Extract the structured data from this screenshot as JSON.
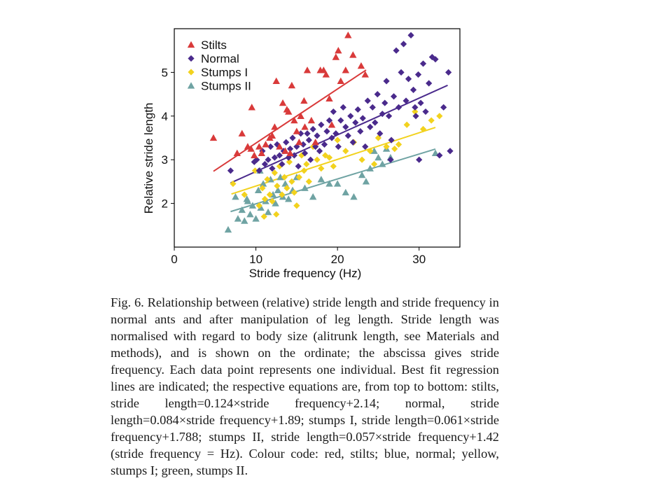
{
  "caption": "Fig. 6. Relationship between (relative) stride length and stride frequency in normal ants and after manipulation of leg length. Stride length was normalised with regard to body size (alitrunk length, see Materials and methods), and is shown on the ordinate; the abscissa gives stride frequency. Each data point represents one individual. Best fit regression lines are indicated; the respective equations are, from top to bottom: stilts, stride length=0.124×stride frequency+2.14; normal, stride length=0.084×stride frequency+1.89; stumps I, stride length=0.061×stride frequency+1.788; stumps II, stride length=0.057×stride frequency+1.42 (stride frequency = Hz). Colour code: red, stilts; blue, normal; yellow, stumps I; green, stumps II.",
  "chart_data": {
    "type": "scatter",
    "xlabel": "Stride frequency (Hz)",
    "ylabel": "Relative stride length",
    "xlim": [
      0,
      35
    ],
    "ylim": [
      1,
      6
    ],
    "xticks": [
      0,
      10,
      20,
      30
    ],
    "yticks": [
      2,
      3,
      4,
      5
    ],
    "legend_position": "top-left",
    "series": [
      {
        "name": "Stilts",
        "marker": "triangle",
        "color": "#d93a3a",
        "regression": {
          "slope": 0.124,
          "intercept": 2.14,
          "x_range": [
            4.8,
            23.5
          ]
        },
        "points": [
          [
            4.8,
            3.5
          ],
          [
            7.7,
            3.15
          ],
          [
            8.3,
            3.6
          ],
          [
            9,
            3.3
          ],
          [
            9.4,
            3.25
          ],
          [
            9.5,
            4.2
          ],
          [
            9.8,
            3.1
          ],
          [
            10.4,
            3.3
          ],
          [
            10.7,
            3.15
          ],
          [
            11.2,
            3.35
          ],
          [
            11.7,
            3.5
          ],
          [
            12.3,
            3.75
          ],
          [
            12.5,
            4.8
          ],
          [
            12.9,
            3.3
          ],
          [
            13.3,
            4.3
          ],
          [
            13.6,
            3.2
          ],
          [
            13.8,
            4.15
          ],
          [
            14.0,
            4.1
          ],
          [
            14.4,
            4.7
          ],
          [
            14.7,
            3.9
          ],
          [
            15.0,
            3.65
          ],
          [
            15.3,
            3.4
          ],
          [
            15.5,
            4.0
          ],
          [
            15.9,
            4.35
          ],
          [
            16.0,
            3.75
          ],
          [
            16.3,
            5.05
          ],
          [
            16.8,
            3.9
          ],
          [
            17.3,
            3.4
          ],
          [
            17.9,
            5.05
          ],
          [
            18.3,
            5.05
          ],
          [
            18.6,
            4.95
          ],
          [
            19.0,
            4.4
          ],
          [
            19.3,
            3.8
          ],
          [
            19.8,
            5.35
          ],
          [
            20.1,
            5.5
          ],
          [
            20.4,
            4.8
          ],
          [
            21.0,
            5.05
          ],
          [
            21.3,
            5.85
          ],
          [
            21.9,
            5.4
          ],
          [
            22.9,
            5.15
          ],
          [
            23.4,
            4.95
          ],
          [
            14.2,
            3.15
          ],
          [
            12.0,
            3.55
          ]
        ]
      },
      {
        "name": "Normal",
        "marker": "diamond",
        "color": "#4a2a8c",
        "regression": {
          "slope": 0.084,
          "intercept": 1.89,
          "x_range": [
            6.9,
            33.5
          ]
        },
        "points": [
          [
            6.9,
            2.75
          ],
          [
            9.8,
            2.95
          ],
          [
            10.1,
            3.0
          ],
          [
            10.4,
            2.75
          ],
          [
            10.8,
            3.2
          ],
          [
            11.1,
            2.9
          ],
          [
            11.5,
            3.0
          ],
          [
            11.8,
            3.3
          ],
          [
            12.0,
            2.8
          ],
          [
            12.3,
            3.05
          ],
          [
            12.6,
            3.35
          ],
          [
            12.9,
            3.1
          ],
          [
            13.2,
            2.9
          ],
          [
            13.4,
            3.2
          ],
          [
            13.7,
            3.4
          ],
          [
            14.0,
            3.05
          ],
          [
            14.2,
            3.25
          ],
          [
            14.5,
            3.5
          ],
          [
            14.7,
            3.1
          ],
          [
            15.0,
            3.3
          ],
          [
            15.2,
            2.85
          ],
          [
            15.5,
            3.6
          ],
          [
            15.8,
            3.35
          ],
          [
            16.0,
            3.15
          ],
          [
            16.3,
            3.6
          ],
          [
            16.5,
            3.45
          ],
          [
            16.7,
            3.0
          ],
          [
            17.0,
            3.7
          ],
          [
            17.3,
            3.3
          ],
          [
            17.5,
            3.55
          ],
          [
            17.8,
            3.2
          ],
          [
            18.0,
            3.8
          ],
          [
            18.4,
            3.35
          ],
          [
            18.7,
            3.65
          ],
          [
            19.0,
            3.9
          ],
          [
            19.3,
            3.5
          ],
          [
            19.5,
            4.1
          ],
          [
            19.8,
            3.6
          ],
          [
            20.1,
            3.3
          ],
          [
            20.4,
            3.9
          ],
          [
            20.7,
            4.2
          ],
          [
            21.0,
            3.75
          ],
          [
            21.3,
            3.55
          ],
          [
            21.6,
            4.0
          ],
          [
            21.9,
            3.4
          ],
          [
            22.2,
            3.85
          ],
          [
            22.5,
            4.15
          ],
          [
            22.8,
            3.65
          ],
          [
            23.1,
            3.95
          ],
          [
            23.4,
            3.3
          ],
          [
            23.7,
            4.35
          ],
          [
            24.0,
            3.75
          ],
          [
            24.3,
            4.2
          ],
          [
            24.6,
            3.85
          ],
          [
            24.9,
            4.5
          ],
          [
            25.2,
            3.6
          ],
          [
            25.5,
            4.05
          ],
          [
            25.8,
            4.3
          ],
          [
            26.0,
            4.8
          ],
          [
            26.3,
            4.0
          ],
          [
            26.6,
            3.45
          ],
          [
            26.9,
            4.45
          ],
          [
            27.2,
            5.5
          ],
          [
            27.5,
            4.2
          ],
          [
            27.8,
            5.0
          ],
          [
            28.1,
            5.65
          ],
          [
            28.4,
            4.35
          ],
          [
            28.7,
            4.85
          ],
          [
            29.0,
            5.85
          ],
          [
            29.3,
            4.6
          ],
          [
            29.6,
            4.0
          ],
          [
            29.9,
            4.95
          ],
          [
            30.2,
            4.3
          ],
          [
            30.5,
            5.2
          ],
          [
            30.8,
            4.1
          ],
          [
            31.2,
            4.75
          ],
          [
            31.6,
            5.35
          ],
          [
            32.0,
            5.3
          ],
          [
            32.5,
            3.1
          ],
          [
            33.0,
            4.2
          ],
          [
            33.6,
            5.0
          ],
          [
            33.8,
            3.2
          ],
          [
            26.5,
            3.0
          ],
          [
            30.0,
            3.0
          ],
          [
            29.5,
            4.2
          ]
        ]
      },
      {
        "name": "Stumps I",
        "marker": "diamond",
        "color": "#f2d21e",
        "regression": {
          "slope": 0.061,
          "intercept": 1.788,
          "x_range": [
            7.0,
            32.0
          ]
        },
        "points": [
          [
            7.2,
            2.45
          ],
          [
            8.6,
            2.2
          ],
          [
            9.9,
            2.75
          ],
          [
            10.4,
            1.95
          ],
          [
            10.8,
            2.35
          ],
          [
            11.1,
            2.1
          ],
          [
            11.4,
            2.55
          ],
          [
            11.7,
            2.2
          ],
          [
            12.0,
            2.05
          ],
          [
            12.3,
            2.7
          ],
          [
            12.6,
            2.4
          ],
          [
            12.9,
            2.85
          ],
          [
            13.2,
            2.2
          ],
          [
            13.5,
            2.6
          ],
          [
            13.8,
            2.35
          ],
          [
            14.1,
            2.95
          ],
          [
            14.4,
            2.5
          ],
          [
            14.7,
            2.25
          ],
          [
            15.0,
            1.95
          ],
          [
            15.3,
            2.6
          ],
          [
            15.6,
            3.1
          ],
          [
            15.9,
            2.75
          ],
          [
            16.2,
            2.9
          ],
          [
            16.5,
            2.5
          ],
          [
            17.0,
            3.3
          ],
          [
            17.5,
            3.0
          ],
          [
            18.0,
            2.8
          ],
          [
            18.5,
            3.1
          ],
          [
            19.0,
            3.05
          ],
          [
            19.5,
            2.85
          ],
          [
            20.0,
            3.45
          ],
          [
            21.0,
            3.2
          ],
          [
            22.0,
            3.4
          ],
          [
            23.0,
            3.0
          ],
          [
            24.0,
            3.2
          ],
          [
            25.0,
            3.5
          ],
          [
            26.0,
            3.3
          ],
          [
            27.0,
            3.25
          ],
          [
            27.5,
            3.35
          ],
          [
            28.5,
            3.8
          ],
          [
            29.5,
            4.1
          ],
          [
            30.5,
            3.7
          ],
          [
            31.5,
            3.9
          ],
          [
            32.5,
            4.0
          ],
          [
            24.5,
            2.9
          ],
          [
            12.5,
            1.75
          ],
          [
            11.0,
            1.7
          ]
        ]
      },
      {
        "name": "Stumps II",
        "marker": "triangle",
        "color": "#6fa3a3",
        "regression": {
          "slope": 0.057,
          "intercept": 1.42,
          "x_range": [
            6.9,
            32.0
          ]
        },
        "points": [
          [
            6.6,
            1.4
          ],
          [
            7.5,
            2.15
          ],
          [
            7.8,
            1.65
          ],
          [
            8.3,
            1.85
          ],
          [
            8.6,
            1.6
          ],
          [
            8.9,
            2.1
          ],
          [
            9.3,
            1.75
          ],
          [
            9.6,
            1.95
          ],
          [
            10.0,
            1.65
          ],
          [
            10.3,
            2.3
          ],
          [
            10.6,
            1.9
          ],
          [
            10.9,
            2.45
          ],
          [
            11.2,
            2.05
          ],
          [
            11.5,
            1.8
          ],
          [
            11.8,
            2.55
          ],
          [
            12.1,
            2.2
          ],
          [
            12.4,
            2.0
          ],
          [
            12.7,
            2.3
          ],
          [
            13.0,
            2.6
          ],
          [
            13.3,
            2.15
          ],
          [
            13.6,
            2.45
          ],
          [
            14.0,
            2.1
          ],
          [
            14.5,
            2.3
          ],
          [
            15.0,
            2.6
          ],
          [
            16.0,
            2.35
          ],
          [
            17.0,
            2.15
          ],
          [
            18.0,
            2.55
          ],
          [
            19.0,
            2.45
          ],
          [
            20.0,
            2.45
          ],
          [
            21.0,
            2.25
          ],
          [
            22.0,
            2.15
          ],
          [
            23.0,
            2.65
          ],
          [
            23.5,
            2.5
          ],
          [
            24.0,
            2.8
          ],
          [
            24.5,
            3.2
          ],
          [
            25.0,
            3.05
          ],
          [
            25.5,
            2.9
          ],
          [
            26.0,
            3.25
          ],
          [
            26.5,
            3.05
          ],
          [
            32.0,
            3.15
          ],
          [
            10.5,
            2.75
          ],
          [
            9.0,
            2.05
          ]
        ]
      }
    ]
  }
}
